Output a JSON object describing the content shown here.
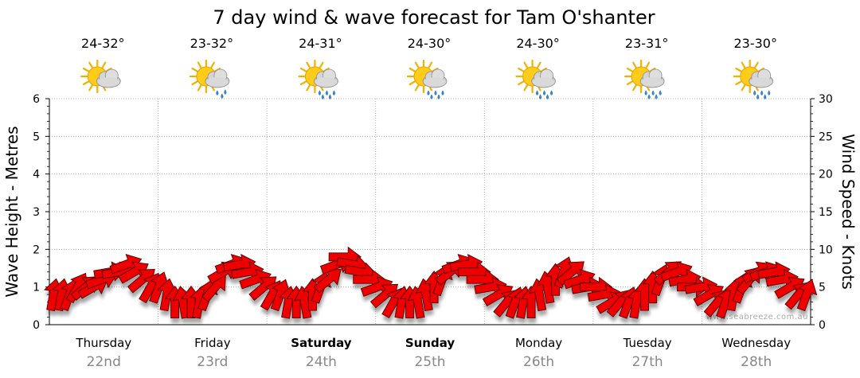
{
  "chart_data": {
    "type": "line",
    "title": "7 day wind & wave forecast for Tam O'shanter",
    "ylabel_left": "Wave Height - Metres",
    "ylabel_right": "Wind Speed - Knots",
    "ylim_left": [
      0,
      6
    ],
    "ylim_right": [
      0,
      30
    ],
    "yticks_left": [
      "0",
      "1",
      "2",
      "3",
      "4",
      "5",
      "6"
    ],
    "yticks_right": [
      "0",
      "5",
      "10",
      "15",
      "20",
      "25",
      "30"
    ],
    "grid": true,
    "watermark": "www.seabreeze.com.au",
    "days": [
      {
        "day": "Thursday",
        "date": "22nd",
        "bold": false,
        "temp": "24-32°",
        "icon": "sun-cloud-icon"
      },
      {
        "day": "Friday",
        "date": "23rd",
        "bold": false,
        "temp": "23-32°",
        "icon": "sun-cloud-light-rain-icon"
      },
      {
        "day": "Saturday",
        "date": "24th",
        "bold": true,
        "temp": "24-31°",
        "icon": "sun-cloud-rain-icon"
      },
      {
        "day": "Sunday",
        "date": "25th",
        "bold": true,
        "temp": "24-30°",
        "icon": "sun-cloud-rain-icon"
      },
      {
        "day": "Monday",
        "date": "26th",
        "bold": false,
        "temp": "24-30°",
        "icon": "sun-cloud-rain-icon"
      },
      {
        "day": "Tuesday",
        "date": "27th",
        "bold": false,
        "temp": "23-31°",
        "icon": "sun-cloud-rain-icon"
      },
      {
        "day": "Wednesday",
        "date": "28th",
        "bold": false,
        "temp": "23-30°",
        "icon": "sun-cloud-rain-icon"
      }
    ],
    "wind_series": {
      "name": "Wind Speed - Knots",
      "unit": "knots",
      "color": "#ee0000",
      "values": [
        4,
        4,
        4,
        5,
        5,
        5,
        6,
        7,
        7,
        8,
        7,
        6,
        5,
        5,
        4,
        3,
        3,
        3,
        3,
        4,
        5,
        7,
        8,
        8,
        7,
        6,
        5,
        4,
        4,
        3,
        3,
        3,
        4,
        5,
        6,
        8,
        9,
        8,
        7,
        6,
        5,
        4,
        3,
        3,
        3,
        3,
        4,
        5,
        6,
        7,
        8,
        8,
        7,
        6,
        5,
        4,
        3,
        3,
        3,
        3,
        4,
        5,
        6,
        7,
        7,
        6,
        5,
        5,
        4,
        3,
        3,
        3,
        3,
        4,
        5,
        6,
        7,
        7,
        6,
        5,
        5,
        4,
        3,
        3,
        4,
        5,
        6,
        7,
        7,
        7,
        6,
        5,
        4,
        4
      ]
    },
    "wind_direction_degrees": [
      190,
      190,
      200,
      210,
      230,
      240,
      250,
      260,
      260,
      250,
      240,
      230,
      210,
      200,
      190,
      180,
      170,
      180,
      190,
      200,
      220,
      240,
      250,
      260,
      260,
      250,
      230,
      210,
      200,
      190,
      180,
      170,
      180,
      200,
      230,
      250,
      270,
      280,
      280,
      270,
      250,
      230,
      210,
      190,
      180,
      170,
      170,
      180,
      200,
      230,
      250,
      260,
      270,
      270,
      260,
      240,
      220,
      200,
      190,
      180,
      170,
      170,
      180,
      200,
      230,
      250,
      260,
      270,
      260,
      240,
      220,
      200,
      190,
      180,
      180,
      200,
      230,
      250,
      260,
      270,
      260,
      240,
      220,
      200,
      190,
      200,
      220,
      240,
      250,
      260,
      260,
      240,
      220,
      200
    ],
    "wave_series": {
      "name": "Wave Height - Metres",
      "unit": "m",
      "color": "#cccccc",
      "values": []
    }
  }
}
